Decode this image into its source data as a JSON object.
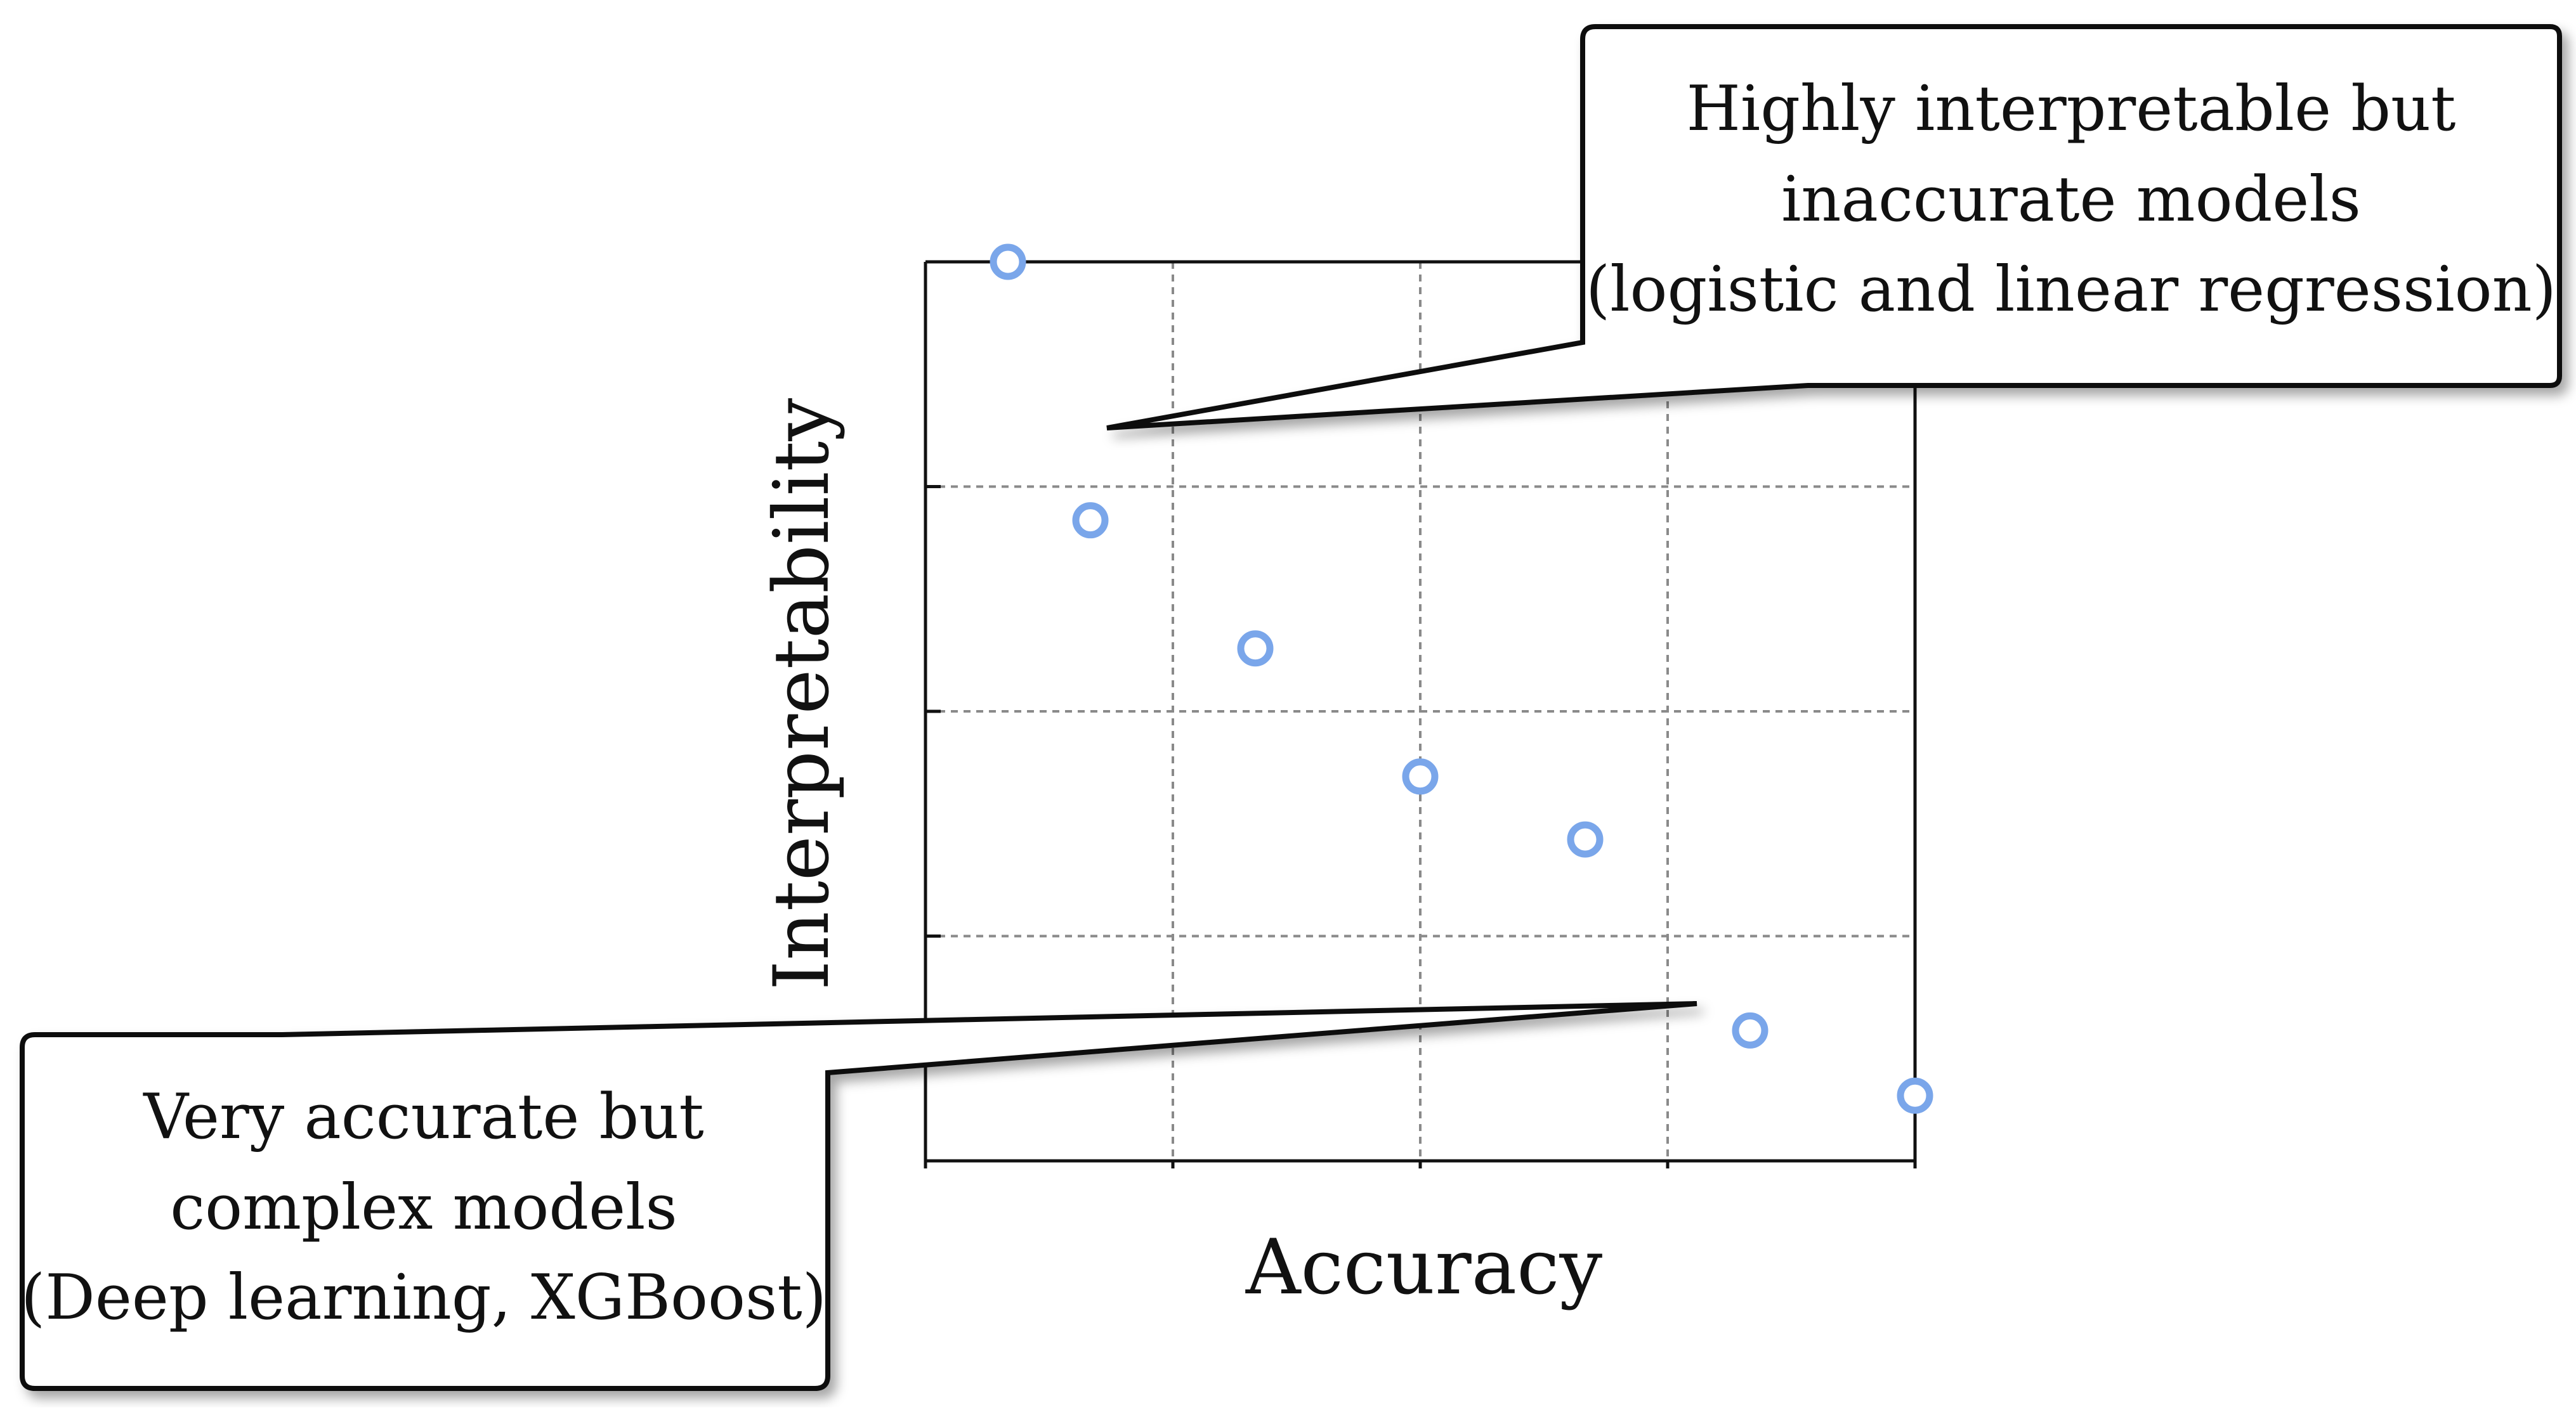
{
  "chart_data": {
    "type": "scatter",
    "title": "",
    "xlabel": "Accuracy",
    "ylabel": "Interpretability",
    "xlim": [
      0,
      6
    ],
    "ylim": [
      0,
      4
    ],
    "grid": true,
    "tick_labels": false,
    "marker": "hollow-circle",
    "marker_color": "#7aa6ea",
    "points": [
      {
        "x": 0.5,
        "y": 4.0
      },
      {
        "x": 1.0,
        "y": 2.85
      },
      {
        "x": 2.0,
        "y": 2.28
      },
      {
        "x": 3.0,
        "y": 1.71
      },
      {
        "x": 4.0,
        "y": 1.43
      },
      {
        "x": 5.0,
        "y": 0.58
      },
      {
        "x": 6.0,
        "y": 0.29
      }
    ],
    "annotations": [
      {
        "lines": [
          "Highly interpretable but",
          "inaccurate models",
          "(logistic and linear regression)"
        ],
        "anchor": {
          "x": 1.1,
          "y": 3.26
        }
      },
      {
        "lines": [
          "Very accurate but",
          "complex models",
          "(Deep learning, XGBoost)"
        ],
        "anchor": {
          "x": 4.65,
          "y": 0.7
        }
      }
    ]
  }
}
